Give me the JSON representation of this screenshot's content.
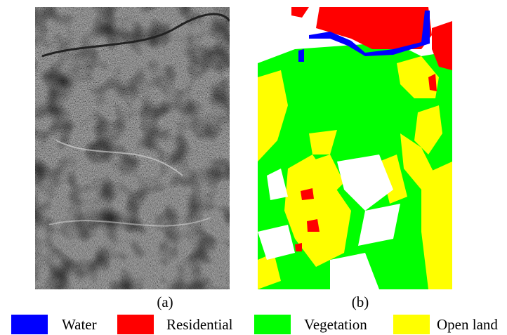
{
  "panels": [
    {
      "label": "(a)"
    },
    {
      "label": "(b)"
    }
  ],
  "legend": [
    {
      "name": "Water",
      "color": "#0000ff"
    },
    {
      "name": "Residential",
      "color": "#ff0000"
    },
    {
      "name": "Vegetation",
      "color": "#00ff00"
    },
    {
      "name": "Open land",
      "color": "#ffff00"
    }
  ]
}
